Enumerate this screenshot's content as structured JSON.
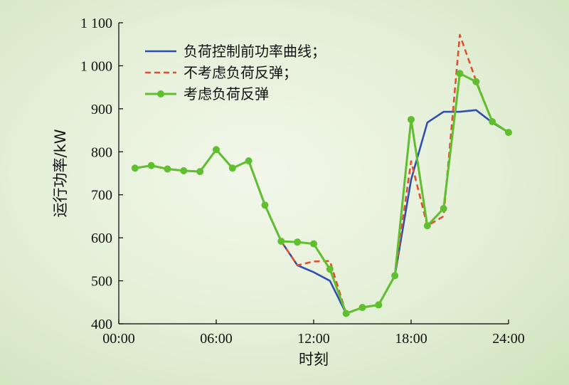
{
  "chart_data": {
    "type": "line",
    "xlabel": "时刻",
    "ylabel": "运行功率/kW",
    "xlim": [
      0,
      24
    ],
    "ylim": [
      400,
      1100
    ],
    "x_ticks": [
      {
        "value": 0,
        "label": "00:00"
      },
      {
        "value": 6,
        "label": "06:00"
      },
      {
        "value": 12,
        "label": "12:00"
      },
      {
        "value": 18,
        "label": "18:00"
      },
      {
        "value": 24,
        "label": "24:00"
      }
    ],
    "y_ticks": [
      {
        "value": 400,
        "label": "400"
      },
      {
        "value": 500,
        "label": "500"
      },
      {
        "value": 600,
        "label": "600"
      },
      {
        "value": 700,
        "label": "700"
      },
      {
        "value": 800,
        "label": "800"
      },
      {
        "value": 900,
        "label": "900"
      },
      {
        "value": 1000,
        "label": "1 000"
      },
      {
        "value": 1100,
        "label": "1 100"
      }
    ],
    "grid": false,
    "legend_position": "top-left",
    "x": [
      1,
      2,
      3,
      4,
      5,
      6,
      7,
      8,
      9,
      10,
      11,
      12,
      13,
      14,
      15,
      16,
      17,
      18,
      19,
      20,
      21,
      22,
      23,
      24
    ],
    "series": [
      {
        "name": "负荷控制前功率曲线；",
        "color": "#2f4fb0",
        "style": "solid",
        "markers": false,
        "values": [
          762,
          768,
          760,
          756,
          754,
          805,
          762,
          779,
          676,
          592,
          536,
          520,
          500,
          424,
          438,
          444,
          512,
          735,
          868,
          893,
          893,
          897,
          868,
          845
        ]
      },
      {
        "name": "不考虑负荷反弹；",
        "color": "#e05030",
        "style": "dashed",
        "markers": false,
        "values": [
          762,
          768,
          760,
          756,
          754,
          805,
          762,
          779,
          676,
          592,
          536,
          545,
          546,
          424,
          438,
          444,
          512,
          778,
          628,
          650,
          1072,
          965,
          870,
          845
        ]
      },
      {
        "name": "考虑负荷反弹",
        "color": "#5fbf2e",
        "style": "solid",
        "markers": true,
        "values": [
          762,
          768,
          760,
          756,
          754,
          805,
          762,
          779,
          676,
          592,
          590,
          586,
          527,
          424,
          438,
          444,
          512,
          875,
          628,
          668,
          982,
          963,
          870,
          845
        ]
      }
    ]
  }
}
